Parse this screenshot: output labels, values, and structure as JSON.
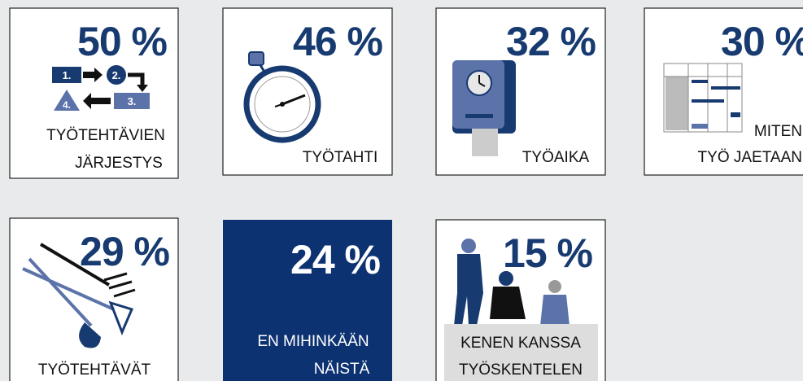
{
  "tiles": [
    {
      "value": "50 %",
      "label": [
        "TYÖTEHTÄVIEN",
        "JÄRJESTYS"
      ]
    },
    {
      "value": "46 %",
      "label": [
        "TYÖTAHTI"
      ]
    },
    {
      "value": "32 %",
      "label": [
        "TYÖAIKA"
      ]
    },
    {
      "value": "30 %",
      "label": [
        "MITEN",
        "TYÖ JAETAAN"
      ]
    },
    {
      "value": "29 %",
      "label": [
        "TYÖTEHTÄVÄT"
      ]
    },
    {
      "value": "24 %",
      "label": [
        "EN MIHINKÄÄN",
        "NÄISTÄ"
      ]
    },
    {
      "value": "15 %",
      "label": [
        "KENEN KANSSA",
        "TYÖSKENTELEN"
      ]
    }
  ]
}
